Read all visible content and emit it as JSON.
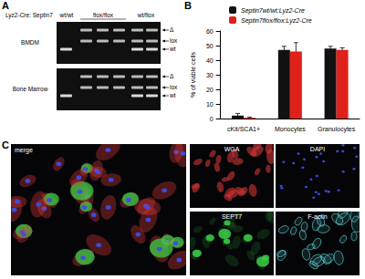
{
  "panel_a": {
    "label": "A",
    "header": "Lyz2-Cre: Septin7",
    "genotypes": [
      "wt/wt",
      "flox/flox",
      "wt/flox"
    ],
    "samples": [
      "BMDM",
      "Bone Marrow"
    ],
    "bands": [
      "Δ",
      "lox",
      "wt"
    ]
  },
  "panel_b": {
    "label": "B"
  },
  "panel_c": {
    "label": "C",
    "merge": "merge",
    "channels": [
      {
        "name": "WGA",
        "color": "#e03838"
      },
      {
        "name": "DAPI",
        "color": "#3a4ee8"
      },
      {
        "name": "SEPT7",
        "color": "#3ccf48"
      },
      {
        "name": "F-actin",
        "color": "#62d6d6"
      }
    ]
  },
  "chart_data": {
    "type": "bar",
    "categories": [
      "cKit/SCA1+",
      "Monocytes",
      "Granulocytes"
    ],
    "series": [
      {
        "name": "Septin7wt/wt:Lyz2-Cre",
        "color": "#111111",
        "values": [
          2,
          47,
          48
        ],
        "errors": [
          1.5,
          2.5,
          1.5
        ]
      },
      {
        "name": "Septin7flox/flox:Lyz2-Cre",
        "color": "#e0201b",
        "values": [
          0.5,
          46,
          47
        ],
        "errors": [
          0.5,
          6,
          1.5
        ]
      }
    ],
    "ylabel": "% of viable cells",
    "ylim": [
      0,
      60
    ],
    "yticks": [
      0,
      10,
      20,
      30,
      40,
      50,
      60
    ],
    "grid": false,
    "legend": "top"
  }
}
